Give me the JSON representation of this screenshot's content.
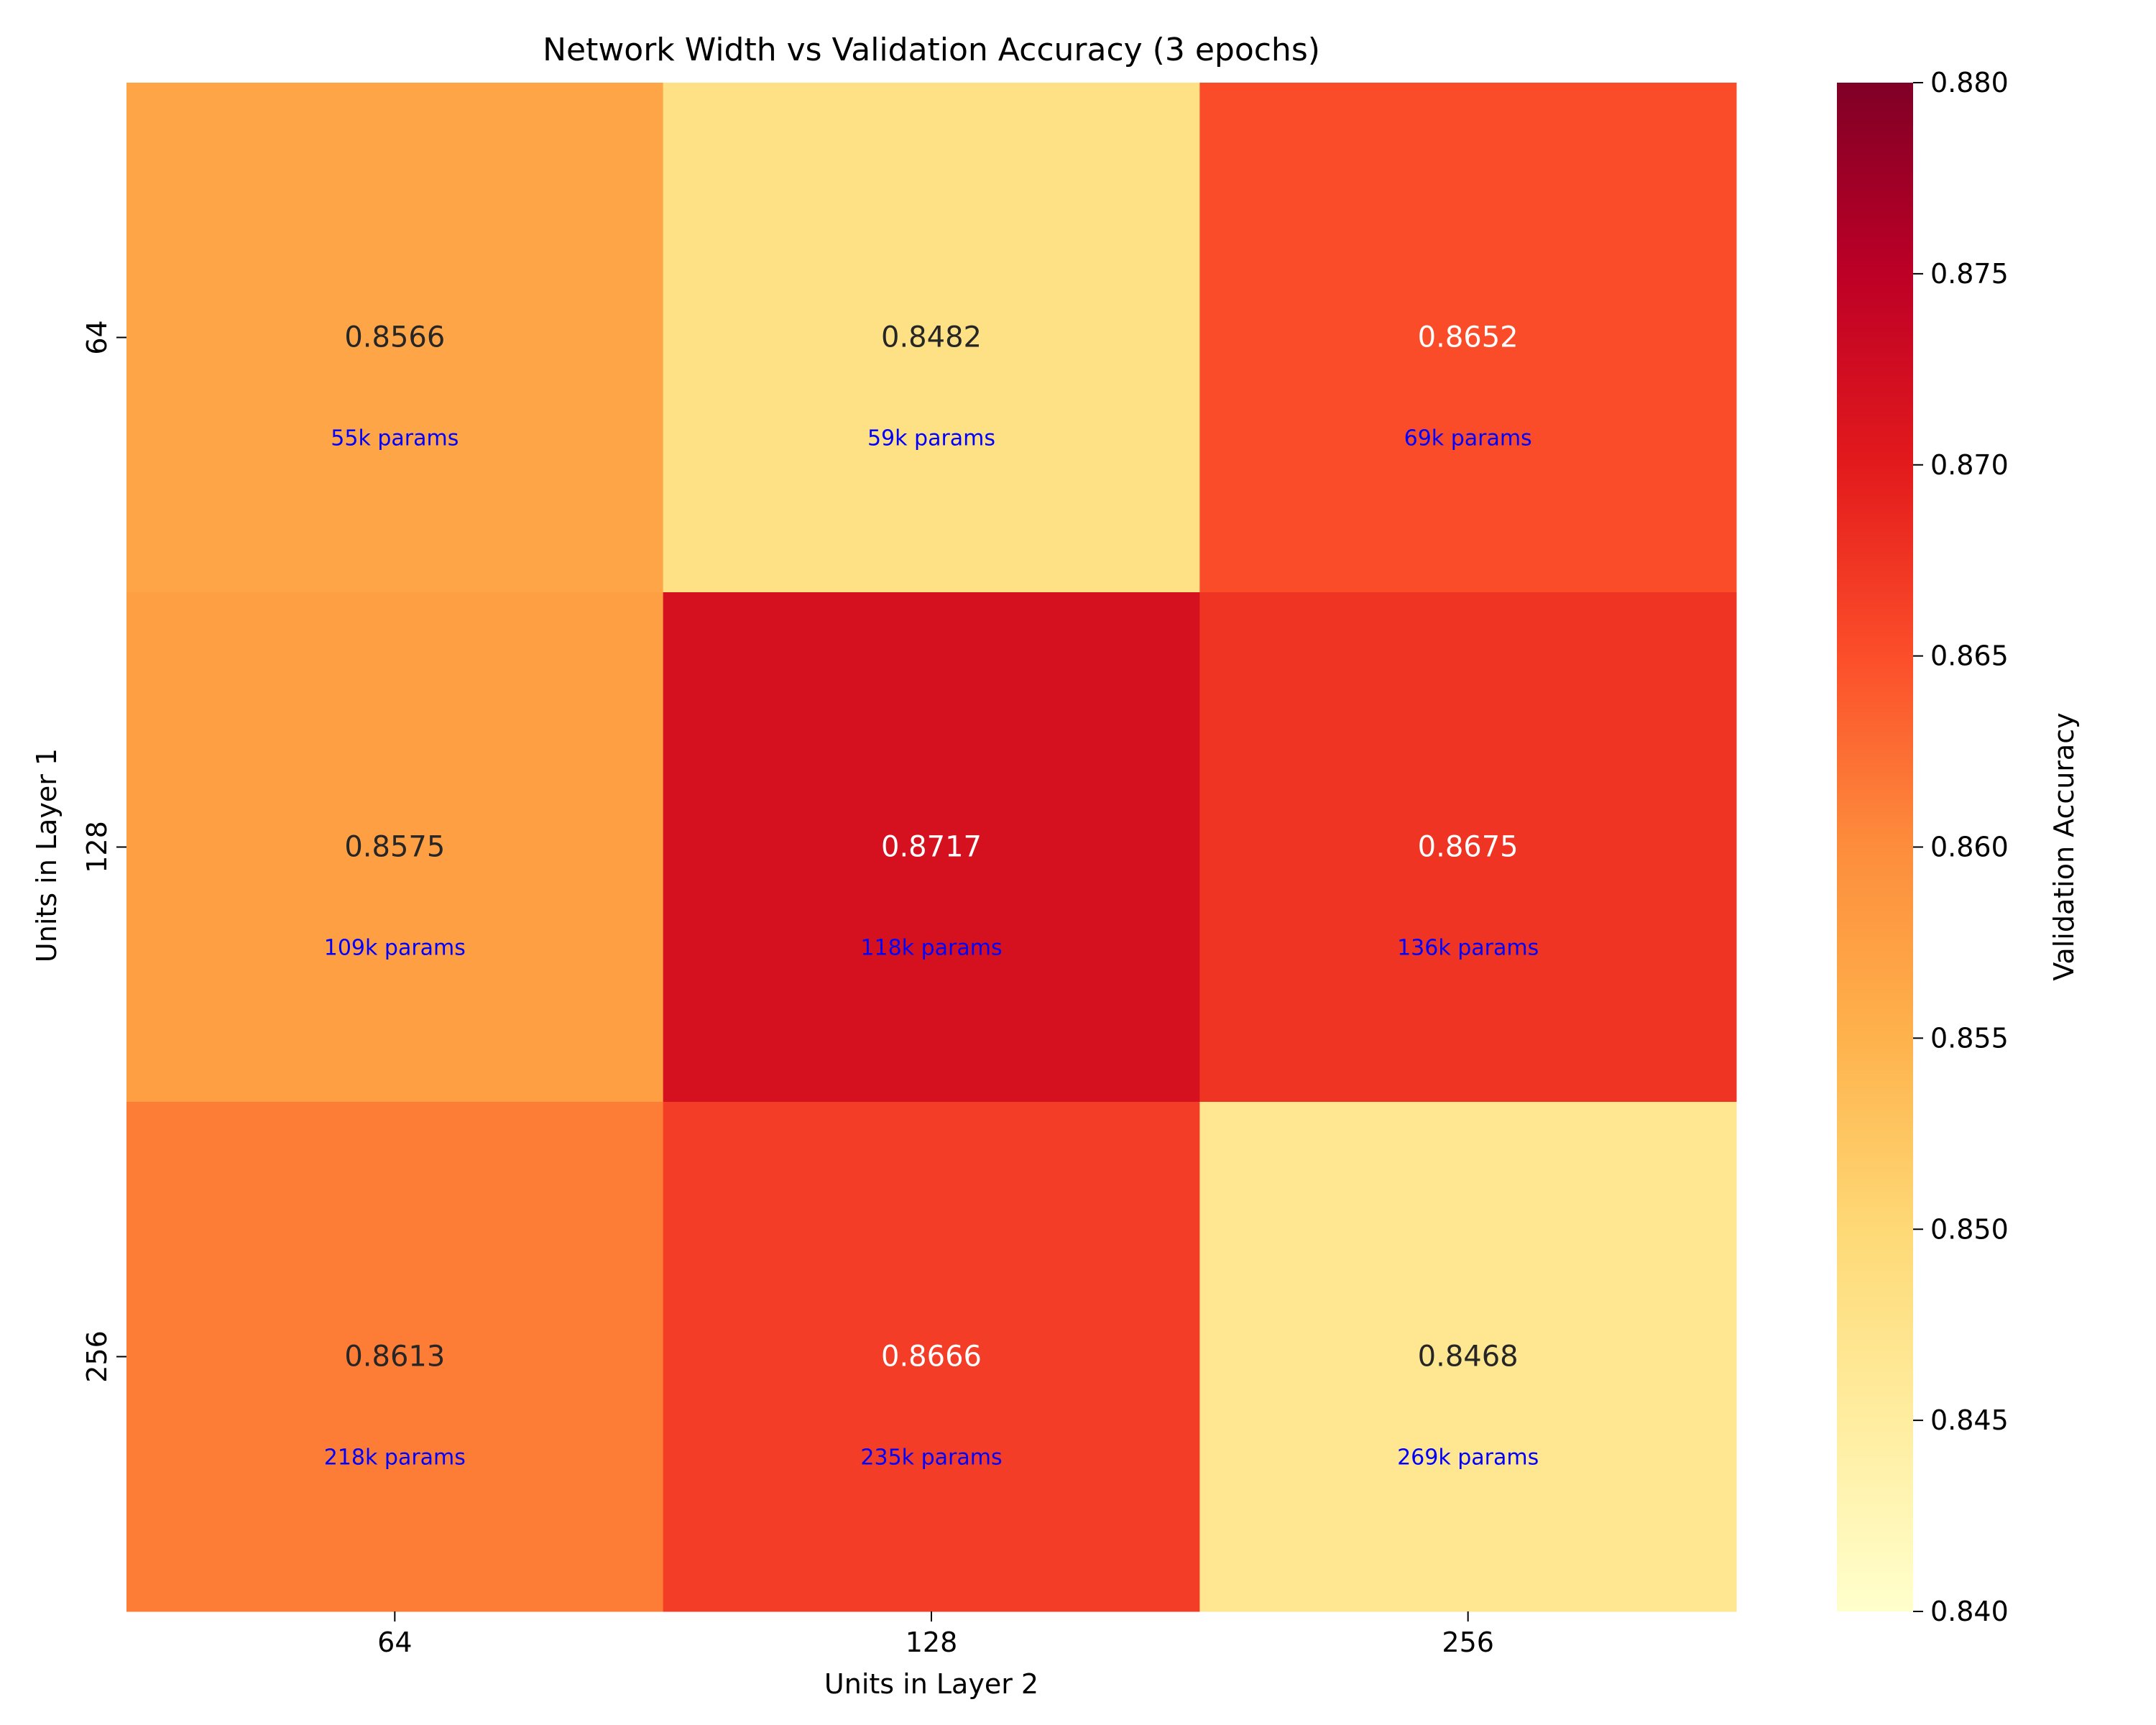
{
  "chart_data": {
    "type": "heatmap",
    "title": "Network Width vs Validation Accuracy (3 epochs)",
    "xlabel": "Units in Layer 2",
    "ylabel": "Units in Layer 1",
    "x_categories": [
      "64",
      "128",
      "256"
    ],
    "y_categories": [
      "64",
      "128",
      "256"
    ],
    "values": [
      [
        0.8566,
        0.8482,
        0.8652
      ],
      [
        0.8575,
        0.8717,
        0.8675
      ],
      [
        0.8613,
        0.8666,
        0.8468
      ]
    ],
    "value_labels": [
      [
        "0.8566",
        "0.8482",
        "0.8652"
      ],
      [
        "0.8575",
        "0.8717",
        "0.8675"
      ],
      [
        "0.8613",
        "0.8666",
        "0.8468"
      ]
    ],
    "param_labels": [
      [
        "55k params",
        "59k params",
        "69k params"
      ],
      [
        "109k params",
        "118k params",
        "136k params"
      ],
      [
        "218k params",
        "235k params",
        "269k params"
      ]
    ],
    "colorbar": {
      "label": "Validation Accuracy",
      "vmin": 0.84,
      "vmax": 0.88,
      "ticks": [
        "0.840",
        "0.845",
        "0.850",
        "0.855",
        "0.860",
        "0.865",
        "0.870",
        "0.875",
        "0.880"
      ],
      "colormap": "YlOrRd"
    },
    "param_label_color": "#0000ff",
    "grid": false
  }
}
